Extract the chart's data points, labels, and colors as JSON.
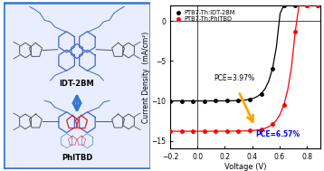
{
  "xlabel": "Voltage (V)",
  "ylabel": "Current Density  (mA/cm²)",
  "xlim": [
    -0.2,
    0.9
  ],
  "ylim": [
    -16,
    2
  ],
  "yticks": [
    0,
    -5,
    -10,
    -15
  ],
  "xticks": [
    -0.2,
    0.0,
    0.2,
    0.4,
    0.6,
    0.8
  ],
  "legend1": "PTB7-Th:IDT-2BM",
  "legend2": "PTB7-Th:PhITBD",
  "pce1_label": "PCE=3.97%",
  "pce2_label": "PCE=6.57%",
  "pce1_color": "black",
  "pce2_color": "blue",
  "arrow_color": "#FFA500",
  "line1_color": "black",
  "line2_color": "red",
  "left_box_face": "#e8eeff",
  "left_box_edge": "#3377cc",
  "blue_mol_color": "#4466cc",
  "red_mol_color": "#dd2222",
  "gray_mol_color": "#555555",
  "idt2bm_label": "IDT-2BM",
  "phitbd_label": "PhITBD"
}
